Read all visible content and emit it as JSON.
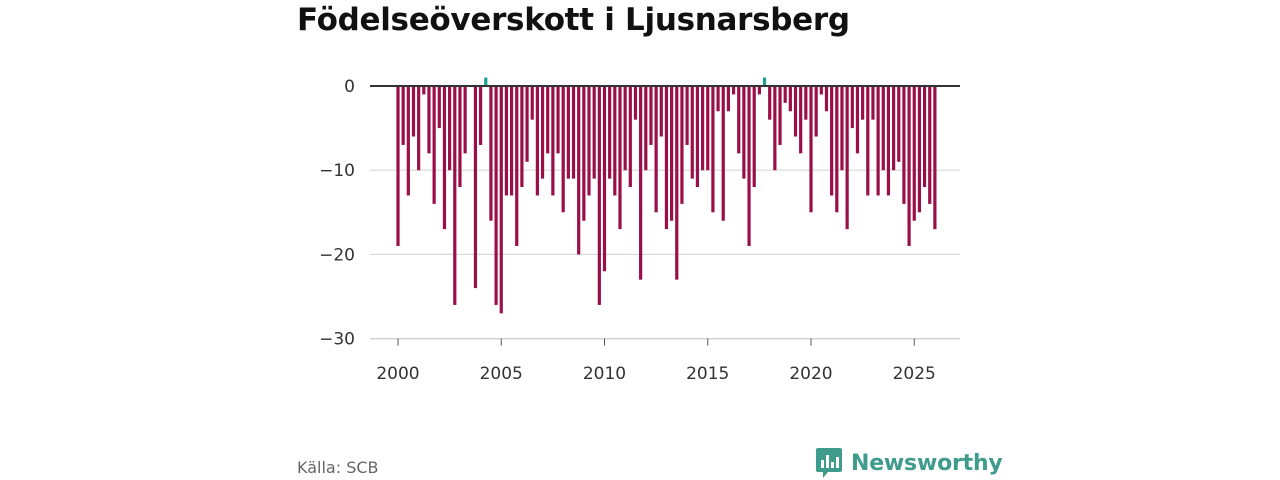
{
  "chart_data": {
    "type": "bar",
    "title": "Födelseöverskott i Ljusnarsberg",
    "xlabel": "",
    "ylabel": "",
    "ylim": [
      -32,
      1.5
    ],
    "xlim": [
      2000,
      2026
    ],
    "yticks": [
      0,
      -10,
      -20,
      -30
    ],
    "ytick_labels": [
      "0",
      "−10",
      "−20",
      "−30"
    ],
    "xticks": [
      2000,
      2005,
      2010,
      2015,
      2020,
      2025
    ],
    "xtick_labels": [
      "2000",
      "2005",
      "2010",
      "2015",
      "2020",
      "2025"
    ],
    "grid": true,
    "colors": {
      "negative": "#9b0f48",
      "positive": "#1a9e97",
      "zero_line": "#333333",
      "grid": "#d9d9d9"
    },
    "series": [
      {
        "name": "Födelseöverskott",
        "start_year": 2000,
        "step_years": 0.25,
        "values": [
          -19,
          -7,
          -13,
          -6,
          -10,
          -1,
          -8,
          -14,
          -5,
          -17,
          -10,
          -26,
          -12,
          -8,
          0,
          -24,
          -7,
          1,
          -16,
          -26,
          -27,
          -13,
          -13,
          -19,
          -12,
          -9,
          -4,
          -13,
          -11,
          -8,
          -13,
          -8,
          -15,
          -11,
          -11,
          -20,
          -16,
          -13,
          -11,
          -26,
          -22,
          -11,
          -13,
          -17,
          -10,
          -12,
          -4,
          -23,
          -10,
          -7,
          -15,
          -6,
          -17,
          -16,
          -23,
          -14,
          -7,
          -11,
          -12,
          -10,
          -10,
          -15,
          -3,
          -16,
          -3,
          -1,
          -8,
          -11,
          -19,
          -12,
          -1,
          1,
          -4,
          -10,
          -7,
          -2,
          -3,
          -6,
          -8,
          -4,
          -15,
          -6,
          -1,
          -3,
          -13,
          -15,
          -10,
          -17,
          -5,
          -8,
          -4,
          -13,
          -4,
          -13,
          -10,
          -13,
          -10,
          -9,
          -14,
          -19,
          -16,
          -15,
          -12,
          -14,
          -17
        ]
      }
    ]
  },
  "source": "Källa: SCB",
  "brand": {
    "name": "Newsworthy",
    "icon": "bar-chart-icon",
    "color": "#3f9c8c"
  }
}
